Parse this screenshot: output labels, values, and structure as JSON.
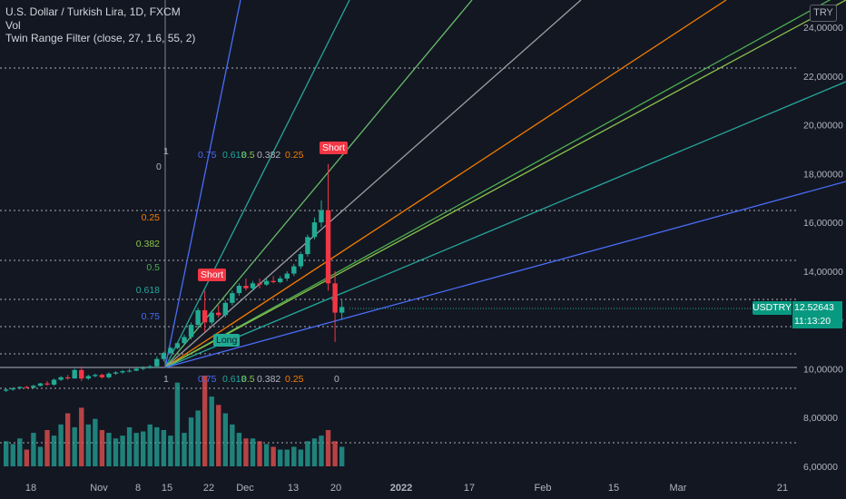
{
  "legend": {
    "title": "U.S. Dollar / Turkish Lira, 1D, FXCM",
    "vol": "Vol",
    "indicator": "Twin Range Filter (close, 27, 1.6, 55, 2)"
  },
  "currency_badge": "TRY",
  "symbol_tag": "USDTRY",
  "last_price": "12.52643",
  "countdown": "11:13:20",
  "signals": {
    "short_top": "Short",
    "short_mid": "Short",
    "long": "Long"
  },
  "fib_labels_upper": [
    "0.75",
    "0.618",
    "0.5",
    "0.382",
    "0.25"
  ],
  "fib_labels_lower": [
    "0.75",
    "0.618",
    "0.5",
    "0.382",
    "0.25"
  ],
  "fib_left_labels": [
    "0.25",
    "0.382",
    "0.5",
    "0.618",
    "0.75"
  ],
  "fib_zero_labels": [
    "0",
    "0",
    "1",
    "1"
  ],
  "colors": {
    "background": "#131722",
    "up": "#22ab94",
    "down": "#f23645",
    "vol_up": "#26a69a",
    "vol_down": "#ef5350"
  },
  "chart_data": {
    "type": "candlestick",
    "price_axis_ticks": [
      "24,00000",
      "22,00000",
      "20,00000",
      "18,00000",
      "16,00000",
      "14,00000",
      "12,00000",
      "10,00000",
      "8,00000",
      "6,00000"
    ],
    "price_axis_values": [
      24,
      22,
      20,
      18,
      16,
      14,
      12,
      10,
      8,
      6
    ],
    "time_axis_ticks": [
      "18",
      "Nov",
      "8",
      "15",
      "22",
      "Dec",
      "13",
      "20",
      "2022",
      "17",
      "Feb",
      "15",
      "Mar",
      "21"
    ],
    "ohlc": [
      [
        9.1,
        9.2,
        9.05,
        9.15
      ],
      [
        9.15,
        9.25,
        9.1,
        9.2
      ],
      [
        9.2,
        9.28,
        9.15,
        9.25
      ],
      [
        9.25,
        9.3,
        9.2,
        9.22
      ],
      [
        9.22,
        9.35,
        9.2,
        9.3
      ],
      [
        9.3,
        9.42,
        9.28,
        9.4
      ],
      [
        9.4,
        9.5,
        9.3,
        9.35
      ],
      [
        9.35,
        9.6,
        9.3,
        9.55
      ],
      [
        9.55,
        9.7,
        9.5,
        9.65
      ],
      [
        9.65,
        9.75,
        9.55,
        9.6
      ],
      [
        9.6,
        10.0,
        9.6,
        9.95
      ],
      [
        9.95,
        10.1,
        9.5,
        9.6
      ],
      [
        9.6,
        9.75,
        9.55,
        9.7
      ],
      [
        9.7,
        9.8,
        9.65,
        9.75
      ],
      [
        9.75,
        9.8,
        9.6,
        9.65
      ],
      [
        9.65,
        9.85,
        9.6,
        9.8
      ],
      [
        9.8,
        9.9,
        9.75,
        9.85
      ],
      [
        9.85,
        9.95,
        9.8,
        9.9
      ],
      [
        9.9,
        10.0,
        9.85,
        9.92
      ],
      [
        9.92,
        10.05,
        9.9,
        10.0
      ],
      [
        10.0,
        10.1,
        9.95,
        10.05
      ],
      [
        10.05,
        10.15,
        10.0,
        10.1
      ],
      [
        10.1,
        10.5,
        10.05,
        10.4
      ],
      [
        10.4,
        10.7,
        10.3,
        10.65
      ],
      [
        10.65,
        10.9,
        10.6,
        10.85
      ],
      [
        10.85,
        11.1,
        10.8,
        11.05
      ],
      [
        11.05,
        11.4,
        11.0,
        11.3
      ],
      [
        11.3,
        11.9,
        11.2,
        11.8
      ],
      [
        11.8,
        12.5,
        11.7,
        12.4
      ],
      [
        12.4,
        13.2,
        11.5,
        11.9
      ],
      [
        11.9,
        12.4,
        11.8,
        12.3
      ],
      [
        12.3,
        12.6,
        12.1,
        12.2
      ],
      [
        12.2,
        12.8,
        12.1,
        12.7
      ],
      [
        12.7,
        13.2,
        12.6,
        13.1
      ],
      [
        13.1,
        13.5,
        13.0,
        13.4
      ],
      [
        13.4,
        13.7,
        13.2,
        13.3
      ],
      [
        13.3,
        13.6,
        13.2,
        13.5
      ],
      [
        13.5,
        13.7,
        13.3,
        13.45
      ],
      [
        13.45,
        13.7,
        13.4,
        13.6
      ],
      [
        13.6,
        13.8,
        13.5,
        13.55
      ],
      [
        13.55,
        13.8,
        13.5,
        13.7
      ],
      [
        13.7,
        14.0,
        13.6,
        13.9
      ],
      [
        13.9,
        14.3,
        13.8,
        14.2
      ],
      [
        14.2,
        14.8,
        14.1,
        14.7
      ],
      [
        14.7,
        15.5,
        14.6,
        15.4
      ],
      [
        15.4,
        16.2,
        15.3,
        16.0
      ],
      [
        16.0,
        16.9,
        15.8,
        16.5
      ],
      [
        16.5,
        18.4,
        13.2,
        13.5
      ],
      [
        13.5,
        14.0,
        11.1,
        12.3
      ],
      [
        12.3,
        12.8,
        12.0,
        12.53
      ]
    ],
    "volume": [
      18,
      16,
      20,
      12,
      24,
      14,
      26,
      22,
      30,
      38,
      28,
      42,
      30,
      34,
      26,
      24,
      20,
      22,
      28,
      24,
      25,
      30,
      28,
      26,
      22,
      60,
      24,
      35,
      40,
      65,
      50,
      44,
      38,
      30,
      24,
      20,
      20,
      18,
      16,
      14,
      12,
      12,
      14,
      12,
      18,
      20,
      22,
      26,
      18,
      14
    ]
  }
}
